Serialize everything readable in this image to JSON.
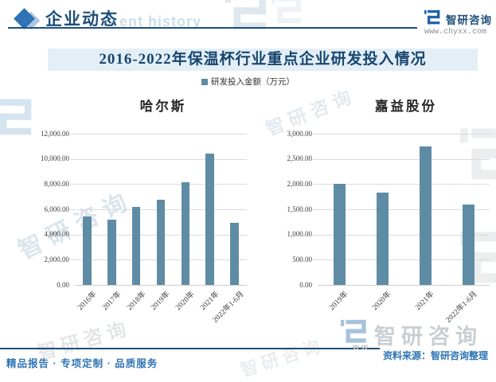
{
  "header": {
    "section_title": "企业动态",
    "watermark_text": "ent history",
    "brand": {
      "name": "智研咨询",
      "url": "www.chyxx.com"
    }
  },
  "title": "2016-2022年保温杯行业重点企业研发投入情况",
  "legend": {
    "label": "研发投入金额（万元）",
    "marker_color": "#5E8CA4"
  },
  "chart_data": [
    {
      "type": "bar",
      "title": "哈尔斯",
      "series_name": "研发投入金额（万元）",
      "categories": [
        "2016年",
        "2017年",
        "2018年",
        "2019年",
        "2020年",
        "2021年",
        "2022年1-6月"
      ],
      "values": [
        5450,
        5150,
        6200,
        6750,
        8150,
        10450,
        4950
      ],
      "ylim": [
        0,
        12000
      ],
      "ytick_step": 2000,
      "ytick_labels": [
        "0.00",
        "2,000.00",
        "4,000.00",
        "6,000.00",
        "8,000.00",
        "10,000.00",
        "12,000.00"
      ],
      "bar_color": "#5E8CA4",
      "grid": true,
      "legend_position": "top-center"
    },
    {
      "type": "bar",
      "title": "嘉益股份",
      "series_name": "研发投入金额（万元）",
      "categories": [
        "2019年",
        "2020年",
        "2021年",
        "2022年1-6月"
      ],
      "values": [
        2000,
        1830,
        2750,
        1590
      ],
      "ylim": [
        0,
        3000
      ],
      "ytick_step": 500,
      "ytick_labels": [
        "0.00",
        "500.00",
        "1,000.00",
        "1,500.00",
        "2,000.00",
        "2,500.00",
        "3,000.00"
      ],
      "bar_color": "#5E8CA4",
      "grid": true,
      "legend_position": "top-center"
    }
  ],
  "footer": {
    "tagline": "精品报告 · 专项定制 · 品质服务",
    "source": "资料来源：智研咨询整理",
    "www_fragment": "w-w",
    "watermark_brand": "智研咨询"
  },
  "colors": {
    "navy": "#1F4E79",
    "accent_blue": "#2E74B5",
    "band_bg": "#E3EEF7",
    "bar": "#5E8CA4",
    "gridline": "#DBDBDB"
  }
}
